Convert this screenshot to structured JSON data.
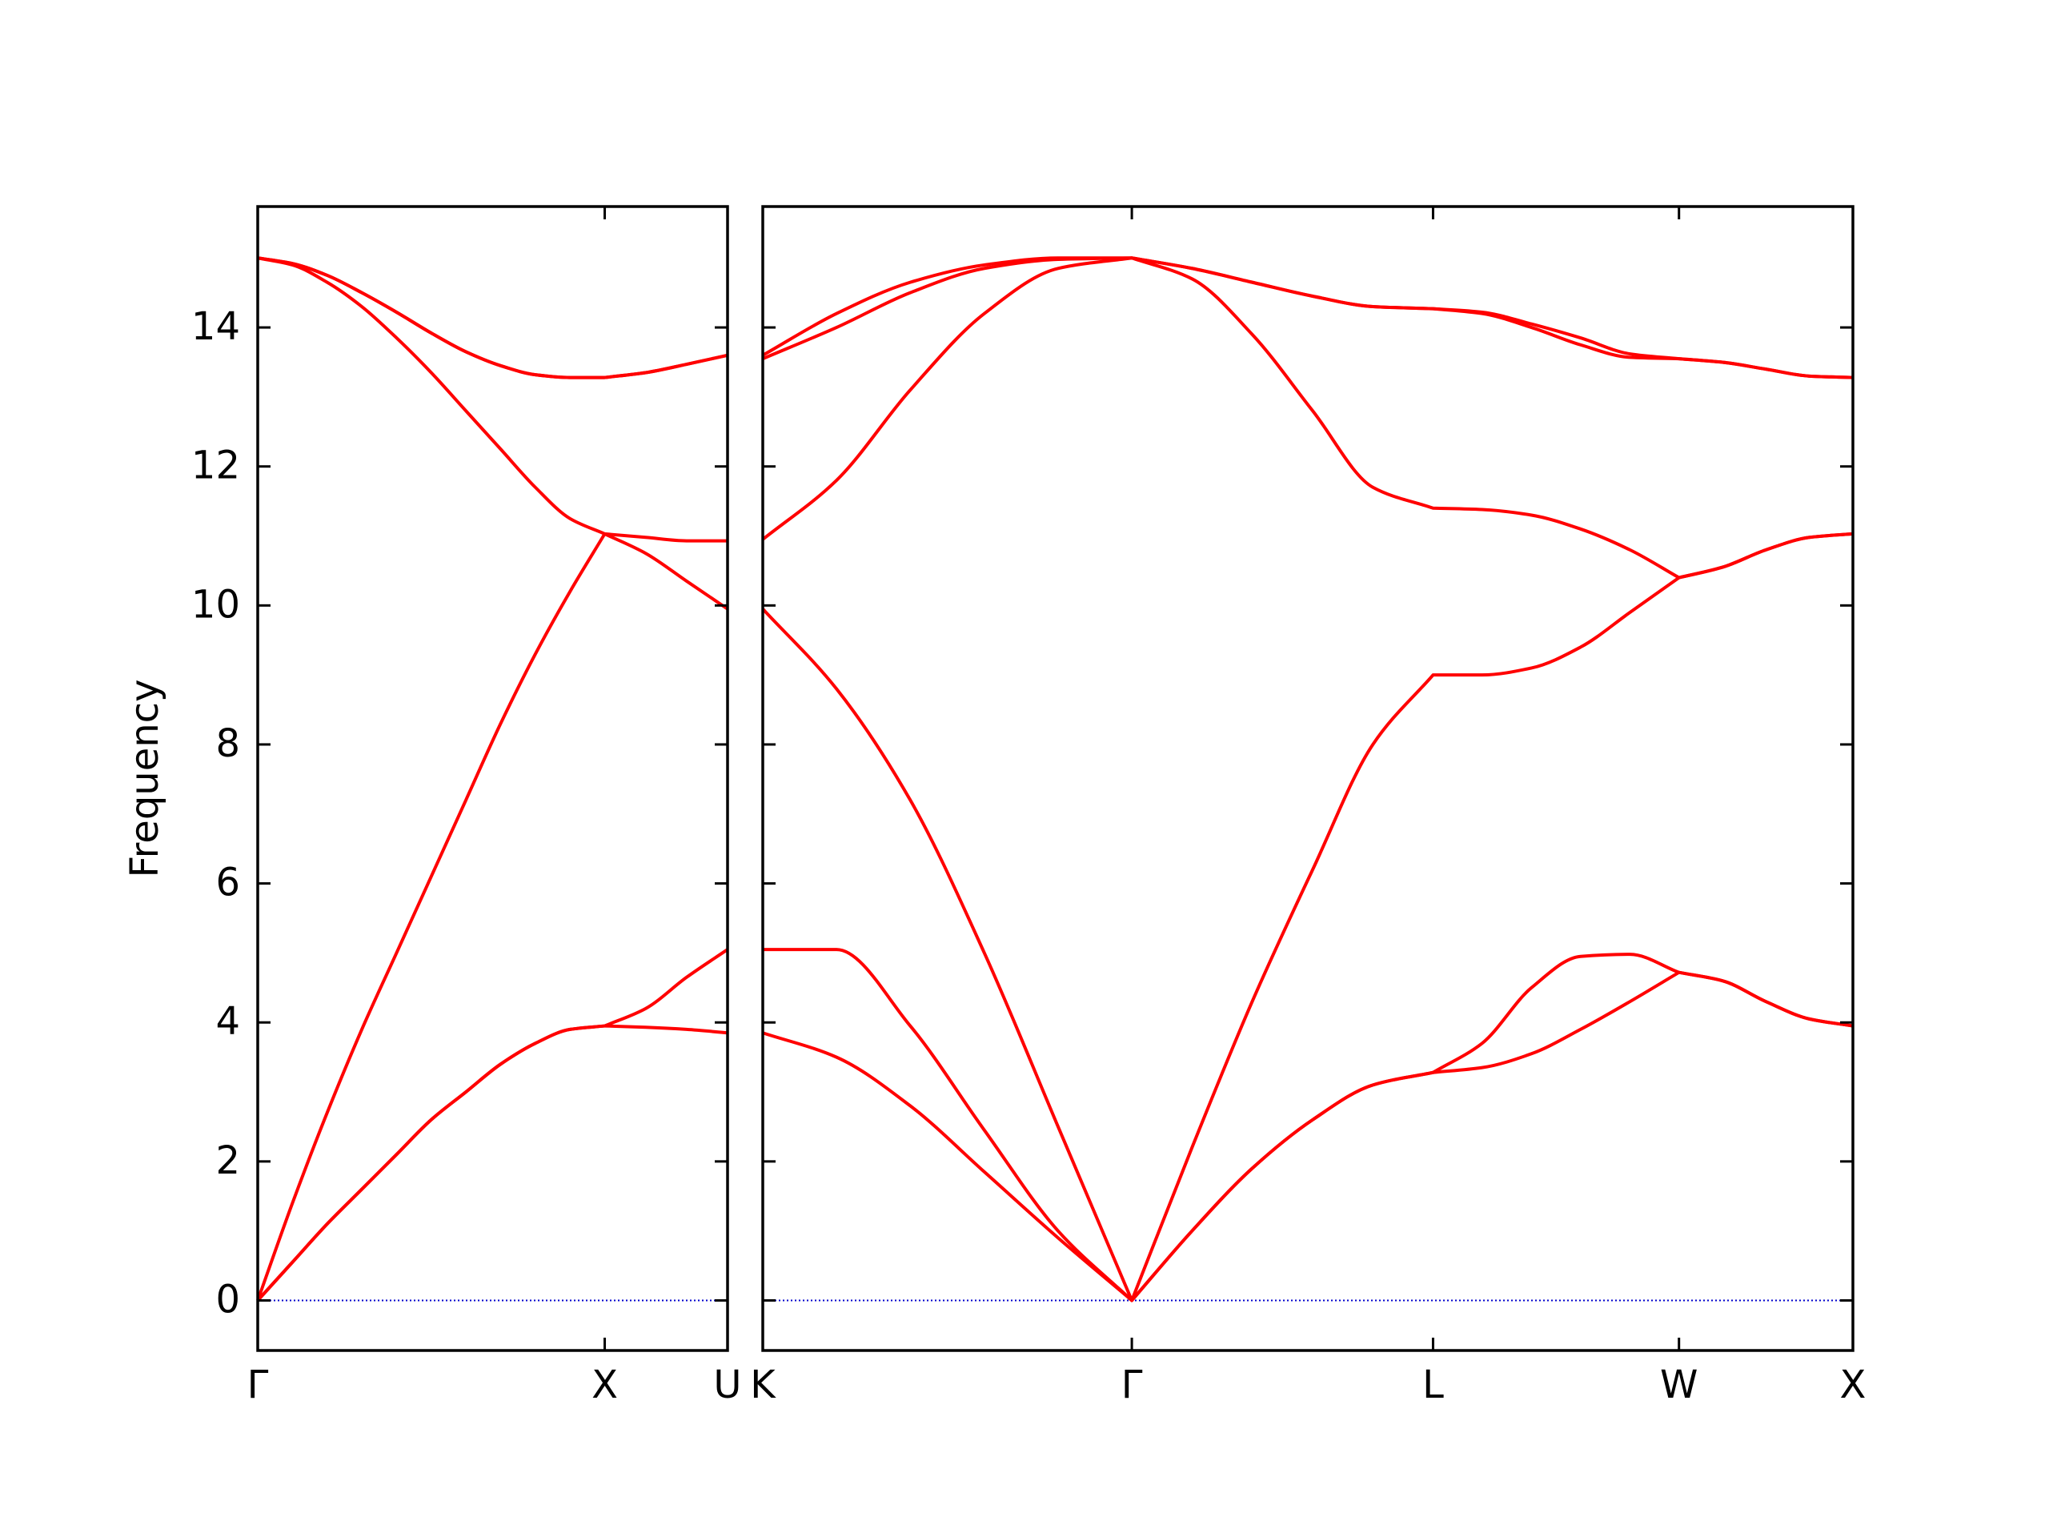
{
  "chart_data": [
    {
      "type": "line",
      "ylabel": "Frequency",
      "x": [
        0,
        0.1,
        0.2,
        0.3,
        0.4,
        0.5,
        0.6,
        0.7,
        0.8,
        0.9,
        1.0,
        1.118,
        1.236,
        1.354
      ],
      "xlim": [
        0,
        1.354
      ],
      "ylim": [
        -0.72,
        15.74
      ],
      "xticks": [
        {
          "value": 0,
          "label": "Γ"
        },
        {
          "value": 1.0,
          "label": "X"
        },
        {
          "value": 1.354,
          "label": "U"
        }
      ],
      "yticks": [
        0,
        2,
        4,
        6,
        8,
        10,
        12,
        14
      ],
      "show_ytick_labels": true,
      "hline": {
        "y": 0,
        "color": "#0000cc"
      },
      "series": [
        {
          "color": "#ff0000",
          "values": [
            0,
            0.55,
            1.1,
            1.6,
            2.1,
            2.6,
            3.0,
            3.4,
            3.7,
            3.9,
            3.95,
            3.93,
            3.9,
            3.85
          ]
        },
        {
          "color": "#ff0000",
          "values": [
            0,
            0.55,
            1.1,
            1.6,
            2.1,
            2.6,
            3.0,
            3.4,
            3.7,
            3.9,
            3.95,
            4.2,
            4.65,
            5.05
          ]
        },
        {
          "color": "#ff0000",
          "values": [
            0,
            1.4,
            2.7,
            3.9,
            5.0,
            6.1,
            7.2,
            8.3,
            9.3,
            10.2,
            11.03,
            10.75,
            10.35,
            9.95
          ]
        },
        {
          "color": "#ff0000",
          "values": [
            15,
            14.9,
            14.65,
            14.3,
            13.85,
            13.35,
            12.8,
            12.25,
            11.7,
            11.25,
            11.03,
            10.98,
            10.93,
            10.93
          ]
        },
        {
          "color": "#ff0000",
          "values": [
            15,
            14.92,
            14.75,
            14.5,
            14.22,
            13.92,
            13.65,
            13.45,
            13.32,
            13.28,
            13.28,
            13.35,
            13.47,
            13.6
          ]
        },
        {
          "color": "#ff0000",
          "values": [
            15,
            14.92,
            14.75,
            14.5,
            14.22,
            13.92,
            13.65,
            13.45,
            13.32,
            13.28,
            13.28,
            13.35,
            13.47,
            13.6
          ]
        }
      ]
    },
    {
      "type": "line",
      "x": [
        0,
        0.212,
        0.424,
        0.637,
        0.849,
        1.061,
        1.234,
        1.407,
        1.581,
        1.754,
        1.927,
        2.068,
        2.21,
        2.351,
        2.493,
        2.634,
        2.759,
        2.884,
        3.009,
        3.134
      ],
      "xlim": [
        0,
        3.134
      ],
      "ylim": [
        -0.72,
        15.74
      ],
      "xticks": [
        {
          "value": 0,
          "label": "K"
        },
        {
          "value": 1.061,
          "label": "Γ"
        },
        {
          "value": 1.927,
          "label": "L"
        },
        {
          "value": 2.634,
          "label": "W"
        },
        {
          "value": 3.134,
          "label": "X"
        }
      ],
      "yticks": [
        0,
        2,
        4,
        6,
        8,
        10,
        12,
        14
      ],
      "show_ytick_labels": false,
      "hline": {
        "y": 0,
        "color": "#0000cc"
      },
      "series": [
        {
          "color": "#ff0000",
          "values": [
            3.85,
            3.5,
            2.8,
            1.85,
            0.9,
            0,
            1.0,
            1.9,
            2.6,
            3.1,
            3.28,
            3.35,
            3.55,
            3.9,
            4.3,
            4.72,
            4.6,
            4.3,
            4.05,
            3.95
          ]
        },
        {
          "color": "#ff0000",
          "values": [
            5.05,
            5.05,
            3.95,
            2.45,
            1.0,
            0,
            1.0,
            1.9,
            2.6,
            3.1,
            3.28,
            3.7,
            4.5,
            4.95,
            4.98,
            4.72,
            4.6,
            4.3,
            4.05,
            3.95
          ]
        },
        {
          "color": "#ff0000",
          "values": [
            9.95,
            8.8,
            7.2,
            5.0,
            2.5,
            0,
            2.2,
            4.3,
            6.2,
            8.0,
            9.0,
            9.0,
            9.1,
            9.4,
            9.9,
            10.4,
            10.55,
            10.8,
            10.98,
            11.03
          ]
        },
        {
          "color": "#ff0000",
          "values": [
            10.95,
            11.8,
            13.1,
            14.2,
            14.85,
            15,
            14.7,
            13.9,
            12.8,
            11.7,
            11.4,
            11.38,
            11.3,
            11.1,
            10.8,
            10.4,
            10.55,
            10.8,
            10.98,
            11.03
          ]
        },
        {
          "color": "#ff0000",
          "values": [
            13.55,
            14.0,
            14.5,
            14.85,
            14.98,
            15,
            14.85,
            14.65,
            14.45,
            14.3,
            14.27,
            14.2,
            14.0,
            13.75,
            13.57,
            13.55,
            13.5,
            13.4,
            13.3,
            13.28
          ]
        },
        {
          "color": "#ff0000",
          "values": [
            13.6,
            14.2,
            14.65,
            14.9,
            15,
            15,
            14.85,
            14.65,
            14.45,
            14.3,
            14.27,
            14.22,
            14.05,
            13.85,
            13.62,
            13.55,
            13.5,
            13.4,
            13.3,
            13.28
          ]
        }
      ]
    }
  ]
}
